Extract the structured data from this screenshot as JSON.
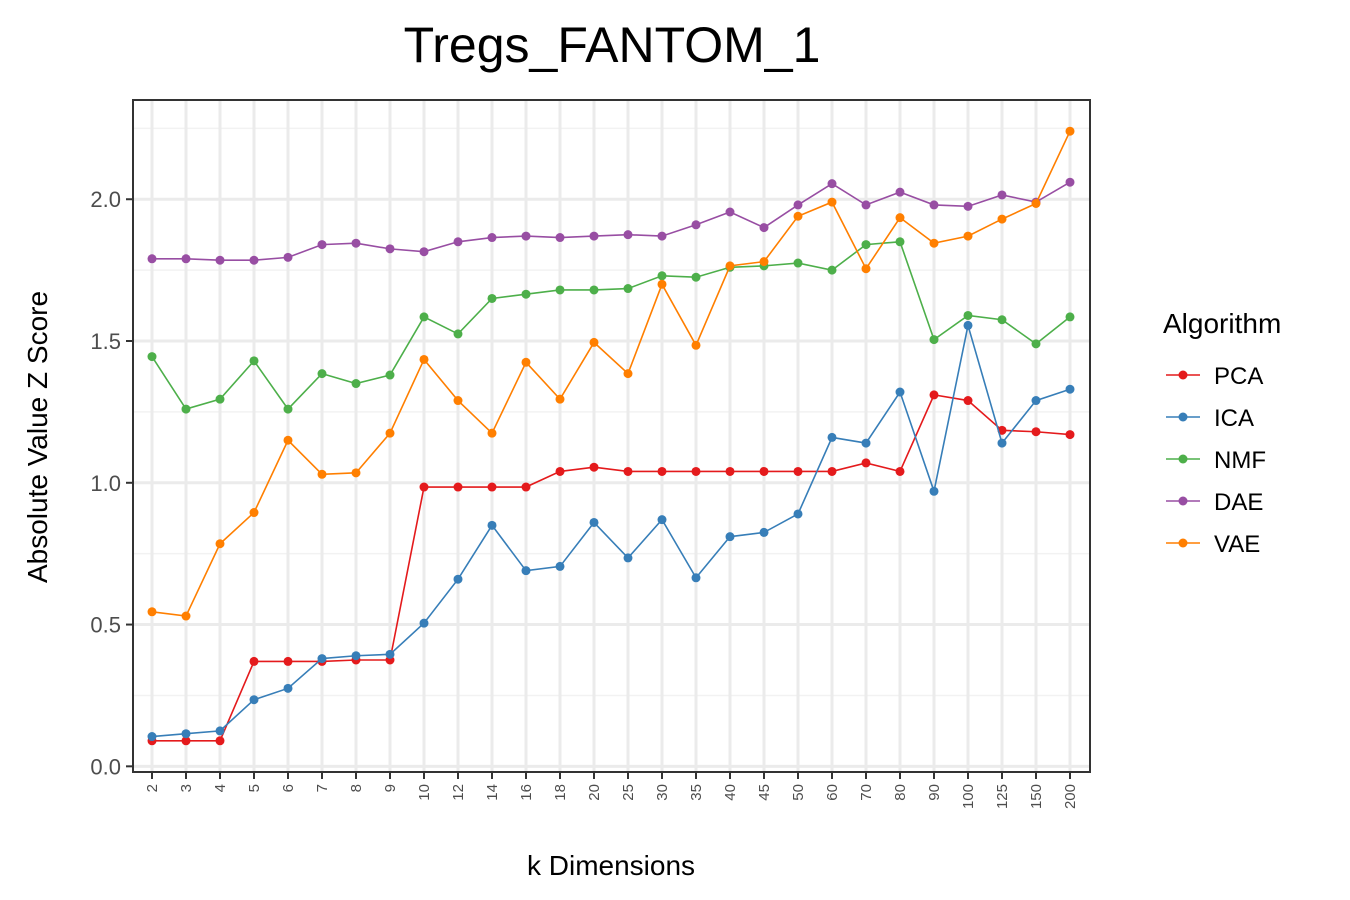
{
  "chart_data": {
    "type": "line",
    "title": "Tregs_FANTOM_1",
    "xlabel": "k Dimensions",
    "ylabel": "Absolute Value Z Score",
    "categories": [
      "2",
      "3",
      "4",
      "5",
      "6",
      "7",
      "8",
      "9",
      "10",
      "12",
      "14",
      "16",
      "18",
      "20",
      "25",
      "30",
      "35",
      "40",
      "45",
      "50",
      "60",
      "70",
      "80",
      "90",
      "100",
      "125",
      "150",
      "200"
    ],
    "ylim": [
      -0.02,
      2.35
    ],
    "yticks": [
      "0.0",
      "0.5",
      "1.0",
      "1.5",
      "2.0"
    ],
    "ytick_values": [
      0.0,
      0.5,
      1.0,
      1.5,
      2.0
    ],
    "grid": true,
    "legend_title": "Algorithm",
    "legend_position": "right",
    "series": [
      {
        "name": "PCA",
        "color": "#e41a1c",
        "values": [
          0.09,
          0.09,
          0.09,
          0.37,
          0.37,
          0.37,
          0.375,
          0.375,
          0.985,
          0.985,
          0.985,
          0.985,
          1.04,
          1.055,
          1.04,
          1.04,
          1.04,
          1.04,
          1.04,
          1.04,
          1.04,
          1.07,
          1.04,
          1.31,
          1.29,
          1.185,
          1.18,
          1.17
        ]
      },
      {
        "name": "ICA",
        "color": "#377eb8",
        "values": [
          0.105,
          0.115,
          0.125,
          0.235,
          0.275,
          0.38,
          0.39,
          0.395,
          0.505,
          0.66,
          0.85,
          0.69,
          0.705,
          0.86,
          0.735,
          0.87,
          0.665,
          0.81,
          0.825,
          0.89,
          1.16,
          1.14,
          1.32,
          0.97,
          1.555,
          1.14,
          1.29,
          1.33
        ]
      },
      {
        "name": "NMF",
        "color": "#4daf4a",
        "values": [
          1.445,
          1.26,
          1.295,
          1.43,
          1.26,
          1.385,
          1.35,
          1.38,
          1.585,
          1.525,
          1.65,
          1.665,
          1.68,
          1.68,
          1.685,
          1.73,
          1.725,
          1.76,
          1.765,
          1.775,
          1.75,
          1.84,
          1.85,
          1.505,
          1.59,
          1.575,
          1.49,
          1.585
        ]
      },
      {
        "name": "DAE",
        "color": "#984ea3",
        "values": [
          1.79,
          1.79,
          1.785,
          1.785,
          1.795,
          1.84,
          1.845,
          1.825,
          1.815,
          1.85,
          1.865,
          1.87,
          1.865,
          1.87,
          1.875,
          1.87,
          1.91,
          1.955,
          1.9,
          1.98,
          2.055,
          1.98,
          2.025,
          1.98,
          1.975,
          2.015,
          1.99,
          2.06
        ]
      },
      {
        "name": "VAE",
        "color": "#ff7f00",
        "values": [
          0.545,
          0.53,
          0.785,
          0.895,
          1.15,
          1.03,
          1.035,
          1.175,
          1.435,
          1.29,
          1.175,
          1.425,
          1.295,
          1.495,
          1.385,
          1.7,
          1.485,
          1.765,
          1.78,
          1.94,
          1.99,
          1.755,
          1.935,
          1.845,
          1.87,
          1.93,
          1.985,
          2.24
        ]
      }
    ]
  }
}
